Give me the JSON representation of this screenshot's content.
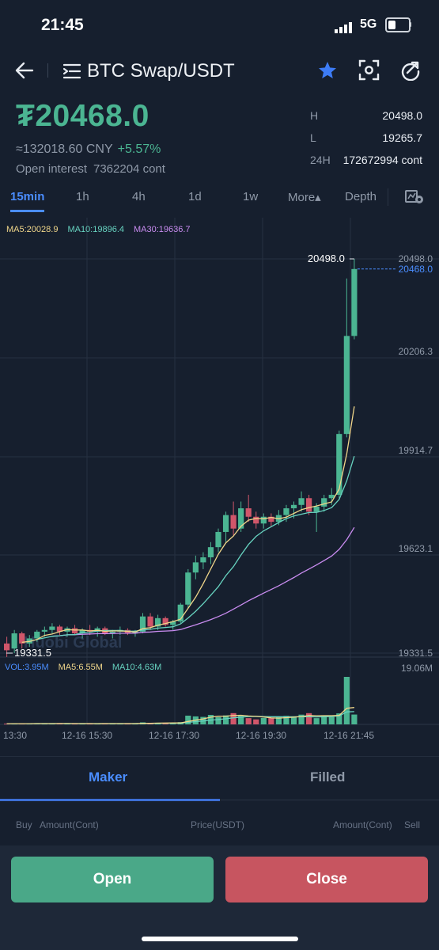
{
  "status_bar": {
    "time": "21:45",
    "network": "5G"
  },
  "header": {
    "title": "BTC Swap/USDT"
  },
  "ticker": {
    "price": "₮20468.0",
    "cny_price": "≈132018.60 CNY",
    "change_pct": "+5.57%",
    "open_interest_label": "Open interest",
    "open_interest_value": "7362204 cont",
    "high_label": "H",
    "high_value": "20498.0",
    "low_label": "L",
    "low_value": "19265.7",
    "vol_label": "24H",
    "vol_value": "172672994 cont"
  },
  "intervals": [
    {
      "label": "15min",
      "active": true
    },
    {
      "label": "1h"
    },
    {
      "label": "4h"
    },
    {
      "label": "1d"
    },
    {
      "label": "1w"
    },
    {
      "label": "More▴"
    },
    {
      "label": "Depth"
    }
  ],
  "indicators": {
    "ma5": "MA5:20028.9",
    "ma10": "MA10:19896.4",
    "ma30": "MA30:19636.7",
    "vol": "VOL:3.95M",
    "vol_ma5": "MA5:6.55M",
    "vol_ma10": "MA10:4.63M"
  },
  "colors": {
    "up": "#4bb592",
    "down": "#d0566a",
    "ma5": "#f0d68a",
    "ma10": "#67d3c0",
    "ma30": "#c98cf0",
    "accent": "#4a8dff"
  },
  "chart_data": {
    "type": "candlestick",
    "price_axis_labels": [
      "20498.0",
      "20206.3",
      "19914.7",
      "19623.1",
      "19331.5"
    ],
    "last_price_label": "20468.0",
    "max_marker": "20498.0",
    "min_marker": "19331.5",
    "vol_axis_label": "19.06M",
    "time_labels": [
      "13:30",
      "12-16 15:30",
      "12-16 17:30",
      "12-16 19:30",
      "12-16 21:45"
    ],
    "watermark": "Huobi Global",
    "candles": [
      [
        19360,
        19380,
        19320,
        19340
      ],
      [
        19345,
        19400,
        19331.5,
        19390
      ],
      [
        19390,
        19395,
        19345,
        19360
      ],
      [
        19360,
        19385,
        19350,
        19375
      ],
      [
        19375,
        19400,
        19365,
        19395
      ],
      [
        19395,
        19410,
        19380,
        19400
      ],
      [
        19400,
        19420,
        19390,
        19410
      ],
      [
        19410,
        19415,
        19385,
        19395
      ],
      [
        19395,
        19410,
        19380,
        19405
      ],
      [
        19405,
        19415,
        19385,
        19390
      ],
      [
        19390,
        19405,
        19375,
        19400
      ],
      [
        19400,
        19415,
        19385,
        19395
      ],
      [
        19395,
        19410,
        19380,
        19405
      ],
      [
        19405,
        19410,
        19385,
        19390
      ],
      [
        19390,
        19400,
        19375,
        19395
      ],
      [
        19395,
        19410,
        19385,
        19400
      ],
      [
        19400,
        19405,
        19385,
        19390
      ],
      [
        19390,
        19400,
        19380,
        19395
      ],
      [
        19395,
        19450,
        19390,
        19440
      ],
      [
        19440,
        19450,
        19400,
        19410
      ],
      [
        19410,
        19445,
        19400,
        19435
      ],
      [
        19435,
        19440,
        19410,
        19415
      ],
      [
        19415,
        19430,
        19400,
        19425
      ],
      [
        19425,
        19480,
        19420,
        19475
      ],
      [
        19475,
        19580,
        19465,
        19570
      ],
      [
        19570,
        19620,
        19550,
        19600
      ],
      [
        19600,
        19630,
        19580,
        19615
      ],
      [
        19615,
        19660,
        19595,
        19645
      ],
      [
        19645,
        19700,
        19630,
        19690
      ],
      [
        19690,
        19750,
        19660,
        19740
      ],
      [
        19740,
        19780,
        19680,
        19700
      ],
      [
        19700,
        19780,
        19690,
        19760
      ],
      [
        19760,
        19800,
        19720,
        19735
      ],
      [
        19735,
        19750,
        19700,
        19715
      ],
      [
        19715,
        19745,
        19700,
        19735
      ],
      [
        19735,
        19745,
        19705,
        19720
      ],
      [
        19720,
        19755,
        19710,
        19740
      ],
      [
        19740,
        19770,
        19720,
        19760
      ],
      [
        19760,
        19780,
        19730,
        19770
      ],
      [
        19770,
        19810,
        19750,
        19790
      ],
      [
        19790,
        19800,
        19740,
        19750
      ],
      [
        19750,
        19775,
        19690,
        19765
      ],
      [
        19765,
        19800,
        19750,
        19790
      ],
      [
        19790,
        19820,
        19770,
        19800
      ],
      [
        19800,
        19990,
        19790,
        19980
      ],
      [
        19980,
        20440,
        19970,
        20270
      ],
      [
        20270,
        20498,
        20260,
        20468
      ]
    ],
    "volume": [
      0.3,
      0.3,
      0.3,
      0.3,
      0.4,
      0.3,
      0.3,
      0.4,
      0.3,
      0.3,
      0.3,
      0.3,
      0.3,
      0.4,
      0.3,
      0.3,
      0.3,
      0.3,
      0.8,
      0.5,
      0.6,
      0.5,
      0.4,
      0.9,
      3.5,
      3.2,
      3.0,
      3.8,
      2.9,
      3.6,
      4.5,
      3.4,
      2.5,
      2.0,
      2.6,
      2.5,
      3.0,
      3.4,
      3.0,
      3.9,
      4.5,
      2.5,
      3.5,
      3.0,
      4.4,
      19.06,
      3.95
    ],
    "ylim": [
      19265.7,
      20498.0
    ]
  },
  "order_panel": {
    "tabs": [
      {
        "label": "Maker",
        "active": true
      },
      {
        "label": "Filled"
      }
    ],
    "columns": {
      "buy": "Buy",
      "amount_left": "Amount(Cont)",
      "price": "Price(USDT)",
      "amount_right": "Amount(Cont)",
      "sell": "Sell"
    }
  },
  "actions": {
    "open": "Open",
    "close": "Close"
  }
}
